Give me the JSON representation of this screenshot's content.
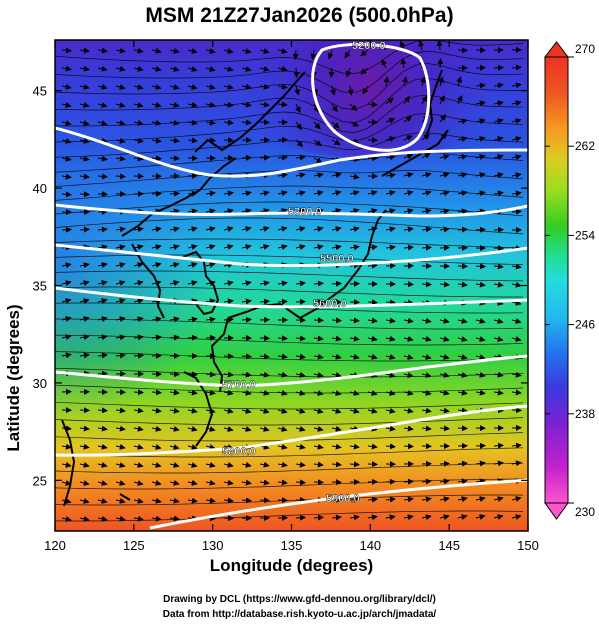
{
  "title": "MSM 21Z27Jan2026 (500.0hPa)",
  "x_axis": {
    "label": "Longitude (degrees)",
    "ticks": [
      120,
      125,
      130,
      135,
      140,
      145,
      150
    ],
    "range": [
      120,
      150
    ]
  },
  "y_axis": {
    "label": "Latitude  (degrees)",
    "ticks": [
      25,
      30,
      35,
      40,
      45
    ],
    "range": [
      22.4,
      47.6
    ]
  },
  "colorbar": {
    "range": [
      230,
      270
    ],
    "ticks": [
      230,
      238,
      246,
      254,
      262,
      270
    ],
    "colors": [
      "#ff55cc",
      "#c222cc",
      "#7a22d2",
      "#3a3ae0",
      "#2277ee",
      "#22bbee",
      "#22dddd",
      "#22dd88",
      "#33cc22",
      "#99dd22",
      "#ddcc22",
      "#f59922",
      "#ee5522",
      "#ee3322"
    ]
  },
  "contours": [
    {
      "label": "5200.0",
      "value": 5200
    },
    {
      "label": "5300.0",
      "value": 5300
    },
    {
      "label": "5500.0",
      "value": 5500
    },
    {
      "label": "5600.0",
      "value": 5600
    },
    {
      "label": "5700.0",
      "value": 5700
    },
    {
      "label": "5800.0",
      "value": 5800
    },
    {
      "label": "5900.0",
      "value": 5900
    }
  ],
  "credits": {
    "line1": "Drawing by DCL (https://www.gfd-dennou.org/library/dcl/)",
    "line2": "Data from http://database.rish.kyoto-u.ac.jp/arch/jmadata/"
  }
}
